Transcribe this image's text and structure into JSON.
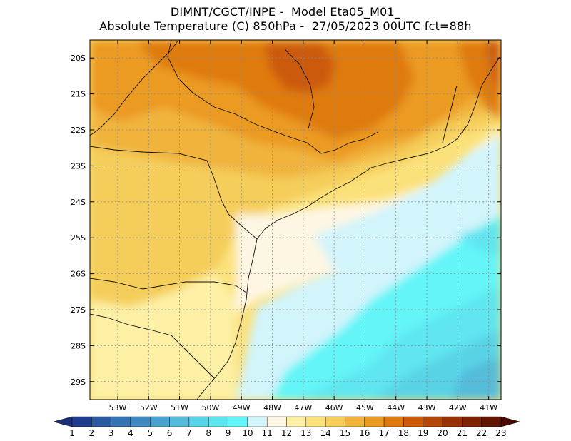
{
  "header": {
    "title_line1": "DIMNT/CGCT/INPE -  Model Eta05_M01_",
    "title_line2": "Absolute Temperature (C) 850hPa -  27/05/2023 00UTC fct=88h"
  },
  "map": {
    "lat_labels": [
      "20S",
      "21S",
      "22S",
      "23S",
      "24S",
      "25S",
      "26S",
      "27S",
      "28S",
      "29S"
    ],
    "lon_labels": [
      "53W",
      "52W",
      "51W",
      "50W",
      "49W",
      "48W",
      "47W",
      "46W",
      "45W",
      "44W",
      "43W",
      "42W",
      "41W"
    ],
    "lat_range": [
      -29.5,
      -19.5
    ],
    "lon_range": [
      -53.9,
      -40.6
    ],
    "grid": true
  },
  "colorbar": {
    "labels": [
      "1",
      "2",
      "3",
      "4",
      "5",
      "6",
      "7",
      "8",
      "9",
      "10",
      "11",
      "12",
      "13",
      "14",
      "15",
      "16",
      "17",
      "18",
      "19",
      "20",
      "21",
      "22",
      "23"
    ],
    "colors": [
      "#1f3d8c",
      "#2c5aa0",
      "#3572b0",
      "#3f88c0",
      "#4aa3cf",
      "#54bcd9",
      "#59d3e6",
      "#5ee6f0",
      "#64f5f8",
      "#d2f4fb",
      "#fdf6e3",
      "#fdf0a4",
      "#fbe17a",
      "#f5cd5a",
      "#f0b43c",
      "#eb9a22",
      "#df7a10",
      "#cc5a08",
      "#b44604",
      "#983202",
      "#7e2402",
      "#621402"
    ],
    "color_left_arrow": "#1a2f7a",
    "color_right_arrow": "#4a0a02"
  }
}
